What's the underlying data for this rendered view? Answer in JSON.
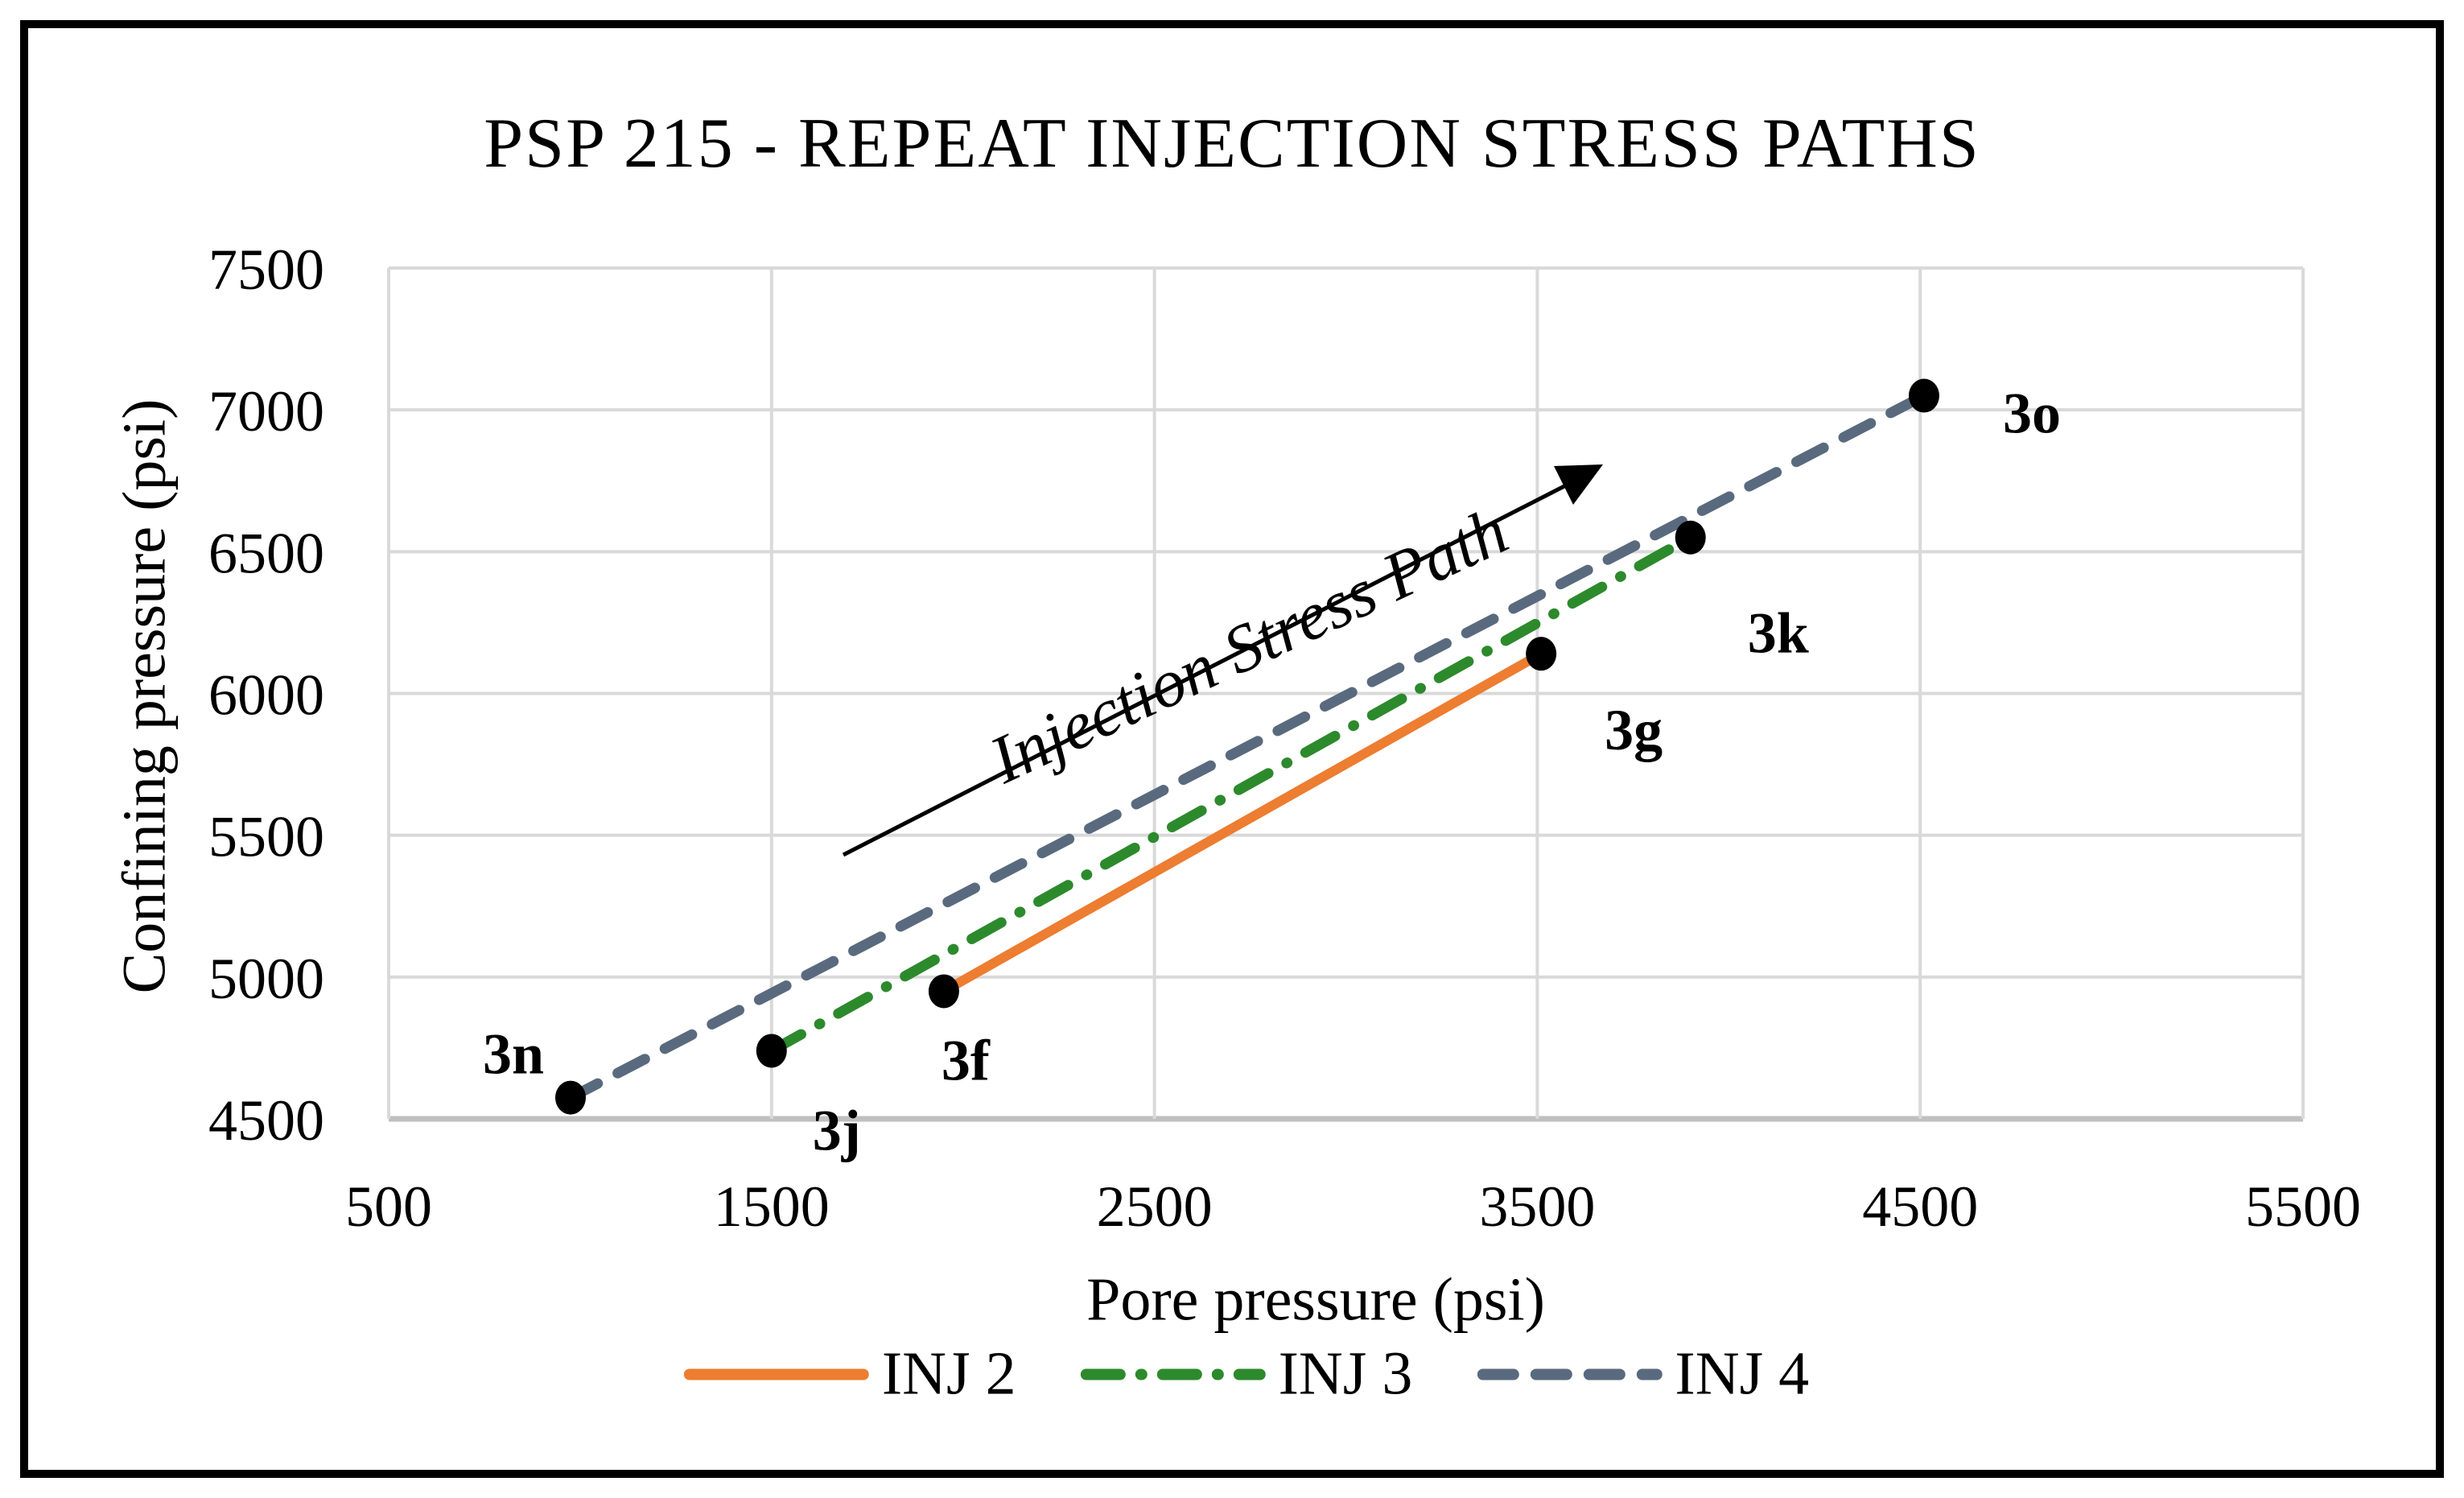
{
  "figure": {
    "title": "PSP 215 - REPEAT INJECTION STRESS PATHS"
  },
  "chart_data": {
    "type": "line",
    "title": "PSP 215 - REPEAT INJECTION STRESS PATHS",
    "xlabel": "Pore pressure (psi)",
    "ylabel": "Confining pressure (psi)",
    "xlim": [
      500,
      5500
    ],
    "ylim": [
      4500,
      7500
    ],
    "x_ticks": [
      500,
      1500,
      2500,
      3500,
      4500,
      5500
    ],
    "y_ticks": [
      4500,
      5000,
      5500,
      6000,
      6500,
      7000,
      7500
    ],
    "grid": true,
    "gridline_color": "#D9D9D9",
    "axis_line_color": "#BFBFBF",
    "marker_color": "#000000",
    "legend_position": "bottom",
    "annotation": {
      "text": "Injection Stress Path",
      "rotation_deg": -25,
      "arrow": true
    },
    "series": [
      {
        "name": "INJ 2",
        "color": "#ED7D31",
        "style": "solid",
        "points": [
          {
            "label": "3f",
            "x": 1950,
            "y": 4950
          },
          {
            "label": "3g",
            "x": 3510,
            "y": 6140
          }
        ]
      },
      {
        "name": "INJ 3",
        "color": "#2C8A2C",
        "style": "dash-dot",
        "points": [
          {
            "label": "3j",
            "x": 1500,
            "y": 4740
          },
          {
            "label": "3k",
            "x": 3900,
            "y": 6550
          }
        ]
      },
      {
        "name": "INJ 4",
        "color": "#5A6A7E",
        "style": "dashed",
        "points": [
          {
            "label": "3n",
            "x": 975,
            "y": 4575
          },
          {
            "label": "3o",
            "x": 4510,
            "y": 7050
          }
        ]
      }
    ]
  }
}
